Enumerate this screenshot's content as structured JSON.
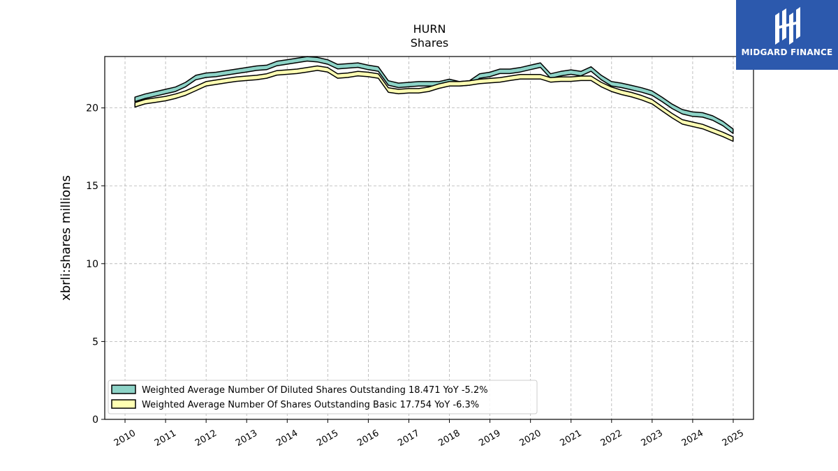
{
  "colors": {
    "diluted_fill": "#8dd3c7",
    "basic_fill": "#ffffb3",
    "outline": "#000000",
    "logo_bg": "#2c59ad"
  },
  "logo": {
    "text": "MIDGARD FINANCE",
    "icon": "midgard-logo-icon"
  },
  "chart_data": {
    "type": "line",
    "title": "HURN",
    "subtitle": "Shares",
    "xlabel": "",
    "ylabel": "xbrli:shares millions",
    "xlim": [
      2009.5,
      2025.5
    ],
    "ylim": [
      0,
      23.3
    ],
    "yticks": [
      0,
      5,
      10,
      15,
      20
    ],
    "xticks": [
      "2010",
      "2011",
      "2012",
      "2013",
      "2014",
      "2015",
      "2016",
      "2017",
      "2018",
      "2019",
      "2020",
      "2021",
      "2022",
      "2023",
      "2024",
      "2025"
    ],
    "grid": true,
    "legend_position": "lower-left",
    "series": [
      {
        "name": "Weighted Average Number Of Diluted Shares Outstanding",
        "legend": "Weighted Average Number Of Diluted Shares Outstanding  18.471 YoY -5.2%",
        "color": "#8dd3c7",
        "x": [
          "2010-03-31",
          "2010-06-30",
          "2010-09-30",
          "2010-12-31",
          "2011-03-31",
          "2011-06-30",
          "2011-09-30",
          "2011-12-31",
          "2012-03-31",
          "2012-06-30",
          "2012-09-30",
          "2012-12-31",
          "2013-03-31",
          "2013-06-30",
          "2013-09-30",
          "2013-12-31",
          "2014-03-31",
          "2014-06-30",
          "2014-09-30",
          "2014-12-31",
          "2015-03-31",
          "2015-06-30",
          "2015-09-30",
          "2015-12-31",
          "2016-03-31",
          "2016-06-30",
          "2016-09-30",
          "2016-12-31",
          "2017-03-31",
          "2017-06-30",
          "2017-09-30",
          "2017-12-31",
          "2018-03-31",
          "2018-06-30",
          "2018-09-30",
          "2018-12-31",
          "2019-03-31",
          "2019-06-30",
          "2019-09-30",
          "2019-12-31",
          "2020-03-31",
          "2020-06-30",
          "2020-09-30",
          "2020-12-31",
          "2021-03-31",
          "2021-06-30",
          "2021-09-30",
          "2021-12-31",
          "2022-03-31",
          "2022-06-30",
          "2022-09-30",
          "2022-12-31",
          "2023-03-31",
          "2023-06-30",
          "2023-09-30",
          "2023-12-31",
          "2024-03-31",
          "2024-06-30",
          "2024-09-30",
          "2024-12-31"
        ],
        "values": [
          20.55,
          20.75,
          20.9,
          21.05,
          21.2,
          21.5,
          21.95,
          22.1,
          22.15,
          22.25,
          22.35,
          22.45,
          22.55,
          22.6,
          22.85,
          22.95,
          23.05,
          23.15,
          23.1,
          22.95,
          22.65,
          22.7,
          22.75,
          22.6,
          22.5,
          21.6,
          21.45,
          21.5,
          21.55,
          21.55,
          21.55,
          21.7,
          21.55,
          21.6,
          22.05,
          22.15,
          22.35,
          22.35,
          22.45,
          22.6,
          22.75,
          22.05,
          22.2,
          22.3,
          22.2,
          22.5,
          21.95,
          21.55,
          21.45,
          21.3,
          21.15,
          20.95,
          20.55,
          20.1,
          19.75,
          19.6,
          19.55,
          19.35,
          19.0,
          18.5
        ]
      },
      {
        "name": "Weighted Average Number Of Shares Outstanding Basic",
        "legend": "Weighted Average Number Of Shares Outstanding Basic  17.754 YoY -6.3%",
        "color": "#ffffb3",
        "x": [
          "2010-03-31",
          "2010-06-30",
          "2010-09-30",
          "2010-12-31",
          "2011-03-31",
          "2011-06-30",
          "2011-09-30",
          "2011-12-31",
          "2012-03-31",
          "2012-06-30",
          "2012-09-30",
          "2012-12-31",
          "2013-03-31",
          "2013-06-30",
          "2013-09-30",
          "2013-12-31",
          "2014-03-31",
          "2014-06-30",
          "2014-09-30",
          "2014-12-31",
          "2015-03-31",
          "2015-06-30",
          "2015-09-30",
          "2015-12-31",
          "2016-03-31",
          "2016-06-30",
          "2016-09-30",
          "2016-12-31",
          "2017-03-31",
          "2017-06-30",
          "2017-09-30",
          "2017-12-31",
          "2018-03-31",
          "2018-06-30",
          "2018-09-30",
          "2018-12-31",
          "2019-03-31",
          "2019-06-30",
          "2019-09-30",
          "2019-12-31",
          "2020-03-31",
          "2020-06-30",
          "2020-09-30",
          "2020-12-31",
          "2021-03-31",
          "2021-06-30",
          "2021-09-30",
          "2021-12-31",
          "2022-03-31",
          "2022-06-30",
          "2022-09-30",
          "2022-12-31",
          "2023-03-31",
          "2023-06-30",
          "2023-09-30",
          "2023-12-31",
          "2024-03-31",
          "2024-06-30",
          "2024-09-30",
          "2024-12-31"
        ],
        "values": [
          20.2,
          20.4,
          20.5,
          20.6,
          20.75,
          20.95,
          21.25,
          21.55,
          21.65,
          21.75,
          21.85,
          21.9,
          21.95,
          22.05,
          22.25,
          22.3,
          22.35,
          22.45,
          22.55,
          22.45,
          22.05,
          22.1,
          22.2,
          22.15,
          22.05,
          21.15,
          21.05,
          21.1,
          21.1,
          21.2,
          21.4,
          21.55,
          21.55,
          21.6,
          21.7,
          21.75,
          21.8,
          21.9,
          22.0,
          22.0,
          22.0,
          21.8,
          21.85,
          21.85,
          21.9,
          21.9,
          21.5,
          21.2,
          21.0,
          20.85,
          20.65,
          20.4,
          19.95,
          19.5,
          19.1,
          18.95,
          18.8,
          18.55,
          18.3,
          18.0
        ]
      }
    ]
  }
}
